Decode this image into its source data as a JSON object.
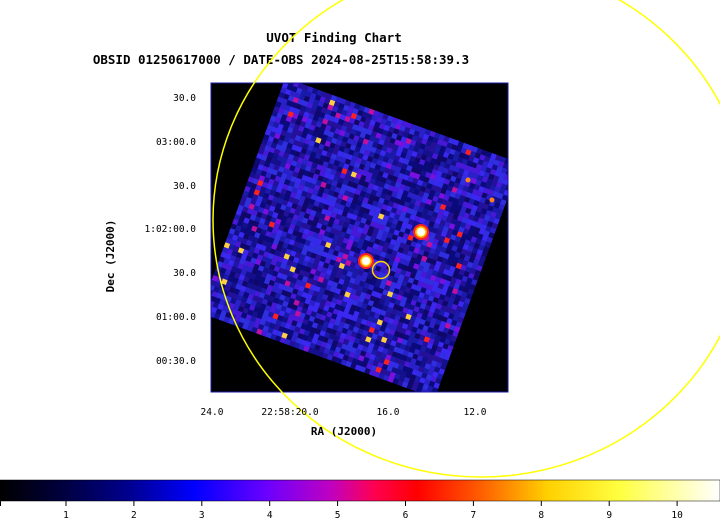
{
  "chart_data": {
    "type": "heatmap",
    "title": "UVOT Finding Chart",
    "subtitle": "OBSID 01250617000 / DATE-OBS 2024-08-25T15:58:39.3",
    "xlabel": "RA (J2000)",
    "ylabel": "Dec (J2000)",
    "x_ticks": [
      "24.0",
      "22:58:20.0",
      "16.0",
      "12.0"
    ],
    "y_ticks": [
      "30.0",
      "03:00.0",
      "30.0",
      "1:02:00.0",
      "30.0",
      "01:00.0",
      "00:30.0"
    ],
    "colorbar": {
      "ticks": [
        "1",
        "2",
        "3",
        "4",
        "5",
        "6",
        "7",
        "8",
        "9",
        "10"
      ],
      "range": [
        0,
        11
      ]
    },
    "image_rotation_deg": 20,
    "sources": [
      {
        "kind": "bright-star",
        "ra_offset": 0.3,
        "dec_offset": 0.2
      },
      {
        "kind": "bright-star",
        "ra_offset": -0.2,
        "dec_offset": -0.1
      }
    ],
    "overlays": [
      {
        "kind": "target-circle",
        "color": "#FFD700"
      },
      {
        "kind": "error-circle",
        "color": "#FFFF00"
      }
    ],
    "colors": {
      "frame": "#1a1aa6",
      "overlay": "#ffff00",
      "colormap": [
        "#000000",
        "#000080",
        "#0000ff",
        "#8000ff",
        "#ff00a0",
        "#ff0000",
        "#ff8000",
        "#ffff00",
        "#ffffff"
      ]
    },
    "grid": false,
    "legend": "colorbar-bottom"
  }
}
